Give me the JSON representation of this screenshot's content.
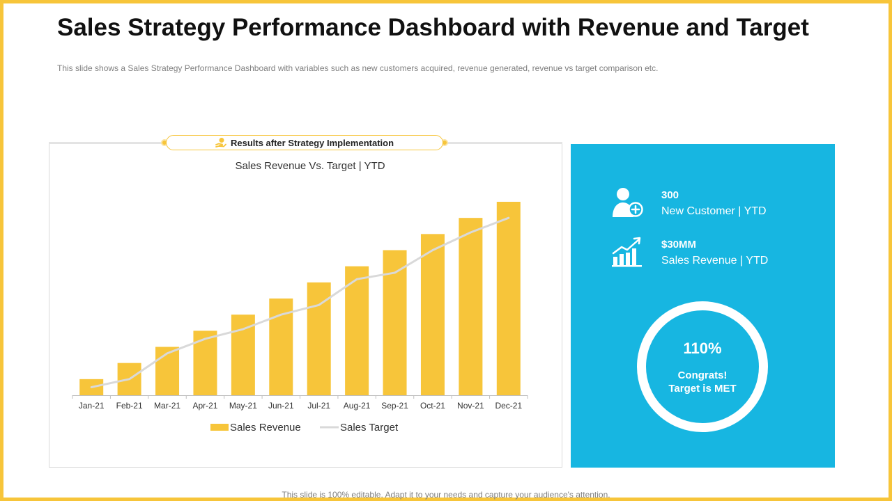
{
  "title": "Sales Strategy Performance Dashboard with Revenue and Target",
  "subtitle": "This slide shows a Sales Strategy Performance  Dashboard with variables  such as new customers acquired,  revenue  generated,  revenue  vs target comparison etc.",
  "banner": {
    "label": "Results  after Strategy Implementation",
    "icon": "hand-coin-icon"
  },
  "chart_data": {
    "type": "bar",
    "title": "Sales Revenue  Vs. Target | YTD",
    "categories": [
      "Jan-21",
      "Feb-21",
      "Mar-21",
      "Apr-21",
      "May-21",
      "Jun-21",
      "Jul-21",
      "Aug-21",
      "Sep-21",
      "Oct-21",
      "Nov-21",
      "Dec-21"
    ],
    "series": [
      {
        "name": "Sales Revenue",
        "type": "bar",
        "color": "#f7c53a",
        "values": [
          1.0,
          2.0,
          3.0,
          4.0,
          5.0,
          6.0,
          7.0,
          8.0,
          9.0,
          10.0,
          11.0,
          12.0
        ]
      },
      {
        "name": "Sales Target",
        "type": "line",
        "color": "#d9d9d9",
        "values": [
          0.5,
          1.0,
          2.6,
          3.5,
          4.1,
          5.0,
          5.6,
          7.2,
          7.6,
          9.0,
          10.1,
          11.0
        ]
      }
    ],
    "ylim": [
      0,
      12
    ],
    "xlabel": "",
    "ylabel": "",
    "grid": false,
    "legend": "bottom"
  },
  "kpis": [
    {
      "value": "300",
      "label": "New Customer | YTD",
      "icon": "add-user-icon"
    },
    {
      "value": "$30MM",
      "label": "Sales Revenue | YTD",
      "icon": "growth-chart-icon"
    }
  ],
  "target": {
    "value": "110%",
    "line1": "Congrats!",
    "line2": "Target is MET"
  },
  "footer": "This slide is 100% editable. Adapt it to your needs and capture your audience's attention.",
  "colors": {
    "accent": "#f7c53a",
    "panel": "#17b6e1",
    "target_line": "#d9d9d9"
  }
}
